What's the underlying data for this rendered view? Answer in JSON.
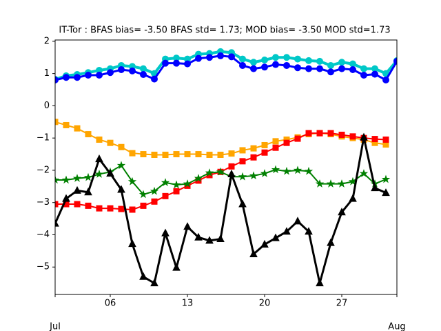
{
  "chart_data": {
    "type": "line",
    "title": "IT-Tor   : BFAS bias= -3.50 BFAS std= 1.73; MOD bias= -3.50 MOD std=1.73",
    "x": [
      1,
      2,
      3,
      4,
      5,
      6,
      7,
      8,
      9,
      10,
      11,
      12,
      13,
      14,
      15,
      16,
      17,
      18,
      19,
      20,
      21,
      22,
      23,
      24,
      25,
      26,
      27,
      28,
      29,
      30,
      31,
      32
    ],
    "xlim": [
      1,
      32
    ],
    "xticks": [
      {
        "value": 6,
        "label": "06"
      },
      13,
      20,
      27
    ],
    "month_ticks": [
      {
        "value": 1,
        "label": "Jul"
      },
      {
        "value": 32,
        "label": "Aug"
      }
    ],
    "ylim": [
      -5.85,
      2.04
    ],
    "yticks": [
      {
        "value": -5,
        "label": "−5"
      },
      {
        "value": -4,
        "label": "−4"
      },
      {
        "value": -3,
        "label": "−3"
      },
      {
        "value": -2,
        "label": "−2"
      },
      {
        "value": -1,
        "label": "−1"
      },
      0,
      1,
      2
    ],
    "grid": false,
    "series": [
      {
        "color": "#00c8c8",
        "marker": "circle",
        "linewidth": 4,
        "values": [
          0.82,
          0.93,
          0.97,
          1.03,
          1.1,
          1.15,
          1.25,
          1.22,
          1.15,
          1.0,
          1.45,
          1.48,
          1.45,
          1.6,
          1.62,
          1.68,
          1.65,
          1.45,
          1.35,
          1.42,
          1.5,
          1.5,
          1.45,
          1.4,
          1.38,
          1.25,
          1.35,
          1.3,
          1.15,
          1.15,
          1.0,
          1.4
        ]
      },
      {
        "color": "#0000ff",
        "marker": "circle",
        "linewidth": 3,
        "values": [
          0.8,
          0.88,
          0.88,
          0.95,
          0.95,
          1.03,
          1.12,
          1.08,
          0.97,
          0.83,
          1.32,
          1.32,
          1.3,
          1.47,
          1.5,
          1.55,
          1.52,
          1.25,
          1.15,
          1.2,
          1.28,
          1.25,
          1.18,
          1.15,
          1.15,
          1.05,
          1.15,
          1.12,
          0.95,
          0.98,
          0.8,
          1.38
        ]
      },
      {
        "color": "#ffa500",
        "marker": "square",
        "linewidth": 2,
        "values": [
          -0.5,
          -0.6,
          -0.7,
          -0.88,
          -1.05,
          -1.15,
          -1.28,
          -1.47,
          -1.5,
          -1.52,
          -1.52,
          -1.5,
          -1.5,
          -1.5,
          -1.52,
          -1.52,
          -1.48,
          -1.38,
          -1.32,
          -1.22,
          -1.1,
          -1.05,
          -0.98,
          -0.88,
          -0.85,
          -0.88,
          -0.95,
          -1.0,
          -1.05,
          -1.15,
          -1.2,
          null
        ]
      },
      {
        "color": "#ff0000",
        "marker": "square",
        "linewidth": 2,
        "values": [
          -3.05,
          -3.05,
          -3.05,
          -3.1,
          -3.18,
          -3.18,
          -3.2,
          -3.22,
          -3.1,
          -2.97,
          -2.8,
          -2.65,
          -2.48,
          -2.32,
          -2.15,
          -2.05,
          -1.88,
          -1.72,
          -1.6,
          -1.45,
          -1.3,
          -1.15,
          -1.02,
          -0.85,
          -0.85,
          -0.85,
          -0.9,
          -0.95,
          -1.0,
          -1.03,
          -1.05,
          null
        ]
      },
      {
        "color": "#008000",
        "marker": "star",
        "linewidth": 2,
        "values": [
          -2.3,
          -2.3,
          -2.25,
          -2.22,
          -2.12,
          -2.05,
          -1.85,
          -2.35,
          -2.75,
          -2.65,
          -2.38,
          -2.45,
          -2.42,
          -2.25,
          -2.08,
          -2.05,
          -2.2,
          -2.2,
          -2.17,
          -2.1,
          -1.98,
          -2.03,
          -2.0,
          -2.03,
          -2.42,
          -2.42,
          -2.42,
          -2.35,
          -2.1,
          -2.42,
          -2.28,
          null
        ]
      },
      {
        "color": "#000000",
        "marker": "triangle",
        "linewidth": 3,
        "values": [
          -3.65,
          -2.88,
          -2.63,
          -2.68,
          -1.65,
          -2.1,
          -2.6,
          -4.28,
          -5.3,
          -5.5,
          -3.95,
          -5.02,
          -3.75,
          -4.08,
          -4.18,
          -4.13,
          -2.12,
          -3.05,
          -4.6,
          -4.3,
          -4.1,
          -3.9,
          -3.58,
          -3.9,
          -5.5,
          -4.25,
          -3.3,
          -2.88,
          -0.98,
          -2.55,
          -2.7,
          null
        ]
      }
    ]
  }
}
